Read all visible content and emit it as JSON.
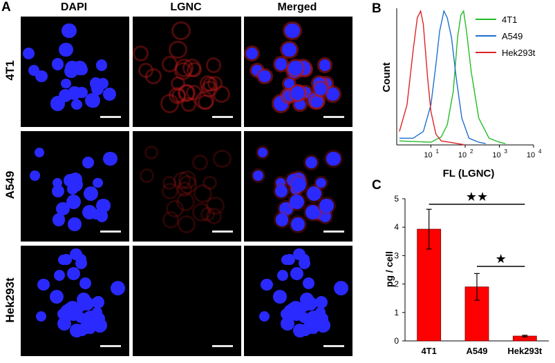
{
  "panel_labels": {
    "a": "A",
    "b": "B",
    "c": "C"
  },
  "panel_a": {
    "columns": [
      "DAPI",
      "LGNC",
      "Merged"
    ],
    "rows": [
      "4T1",
      "A549",
      "Hek293t"
    ],
    "colors": {
      "dapi": "#2a2aff",
      "lgnc": "#b01818",
      "background": "#000000"
    }
  },
  "chart_data": [
    {
      "type": "line",
      "panel": "B",
      "xlabel": "FL (LGNC)",
      "ylabel": "Count",
      "x_scale": "log",
      "xlim": [
        1,
        10000
      ],
      "x_ticks": [
        "10",
        "10",
        "10",
        "10"
      ],
      "x_tick_exponents": [
        "1",
        "2",
        "3",
        "4"
      ],
      "x_tick_values": [
        10,
        100,
        1000,
        10000
      ],
      "legend_position": "top-right",
      "series": [
        {
          "name": "4T1",
          "color": "#22bb22",
          "x": [
            1.2,
            10,
            20,
            30,
            45,
            60,
            75,
            90,
            110,
            150,
            250,
            500,
            1000,
            1500
          ],
          "y": [
            0.03,
            0.02,
            0.06,
            0.15,
            0.4,
            0.8,
            0.97,
            1.0,
            0.85,
            0.55,
            0.2,
            0.05,
            0.02,
            0.01
          ]
        },
        {
          "name": "A549",
          "color": "#1e6fd0",
          "x": [
            1.2,
            3,
            6,
            10,
            14,
            18,
            24,
            30,
            40,
            55,
            80,
            130,
            250,
            400
          ],
          "y": [
            0.05,
            0.05,
            0.1,
            0.3,
            0.6,
            0.85,
            1.0,
            0.95,
            0.8,
            0.5,
            0.2,
            0.05,
            0.02,
            0.01
          ]
        },
        {
          "name": "Hek293t",
          "color": "#dd2222",
          "x": [
            1.2,
            2,
            3,
            4,
            5,
            6,
            8,
            10,
            14,
            20,
            35,
            60,
            100
          ],
          "y": [
            0.1,
            0.3,
            0.7,
            0.95,
            1.0,
            0.9,
            0.5,
            0.25,
            0.08,
            0.03,
            0.02,
            0.01,
            0.0
          ]
        }
      ]
    },
    {
      "type": "bar",
      "panel": "C",
      "categories": [
        "4T1",
        "A549",
        "Hek293t"
      ],
      "values": [
        3.93,
        1.9,
        0.17
      ],
      "errors": [
        0.7,
        0.47,
        0.03
      ],
      "ylabel": "pg / cell",
      "ylim": [
        0,
        5
      ],
      "y_ticks": [
        0,
        1,
        2,
        3,
        4,
        5
      ],
      "bar_color": "#ff0000",
      "significance": [
        {
          "from": "4T1",
          "to": "Hek293t",
          "label": "★★"
        },
        {
          "from": "A549",
          "to": "Hek293t",
          "label": "★"
        }
      ]
    }
  ]
}
